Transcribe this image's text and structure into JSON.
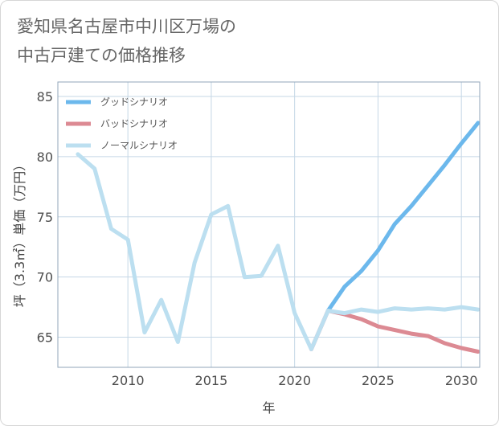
{
  "header": {
    "title_line1": "愛知県名古屋市中川区万場の",
    "title_line2": "中古戸建ての価格推移"
  },
  "colors": {
    "good": "#6cb8ec",
    "bad": "#dc8a93",
    "normal": "#bcdff0",
    "grid": "#c5d7e6",
    "frame": "#90a4b8"
  },
  "chart_data": {
    "type": "line",
    "title": "愛知県名古屋市中川区万場の中古戸建ての価格推移",
    "xlabel": "年",
    "ylabel": "坪（3.3㎡）単価（万円）",
    "xlim": [
      2005.8,
      2031.1
    ],
    "ylim": [
      62.5,
      86.2
    ],
    "x_ticks": [
      2010,
      2015,
      2020,
      2025,
      2030
    ],
    "y_ticks": [
      65,
      70,
      75,
      80,
      85
    ],
    "grid": true,
    "legend_position": "top-left",
    "series": [
      {
        "name": "グッドシナリオ",
        "color": "#6cb8ec",
        "x": [
          2022,
          2023,
          2024,
          2025,
          2026,
          2027,
          2028,
          2029,
          2030,
          2031
        ],
        "y": [
          67.2,
          69.2,
          70.5,
          72.2,
          74.4,
          75.9,
          77.6,
          79.3,
          81.1,
          82.8
        ]
      },
      {
        "name": "バッドシナリオ",
        "color": "#dc8a93",
        "x": [
          2021,
          2022,
          2023,
          2024,
          2025,
          2026,
          2027,
          2028,
          2029,
          2030,
          2031
        ],
        "y": [
          64.0,
          67.2,
          66.9,
          66.5,
          65.9,
          65.6,
          65.3,
          65.1,
          64.5,
          64.1,
          63.8
        ]
      },
      {
        "name": "ノーマルシナリオ",
        "color": "#bcdff0",
        "x": [
          2007,
          2008,
          2009,
          2010,
          2011,
          2012,
          2013,
          2014,
          2015,
          2016,
          2017,
          2018,
          2019,
          2020,
          2021,
          2022,
          2023,
          2024,
          2025,
          2026,
          2027,
          2028,
          2029,
          2030,
          2031
        ],
        "y": [
          80.2,
          79.0,
          74.0,
          73.1,
          65.4,
          68.1,
          64.6,
          71.2,
          75.2,
          75.9,
          70.0,
          70.1,
          72.6,
          67.0,
          64.0,
          67.2,
          67.0,
          67.3,
          67.1,
          67.4,
          67.3,
          67.4,
          67.3,
          67.5,
          67.3
        ]
      }
    ]
  }
}
